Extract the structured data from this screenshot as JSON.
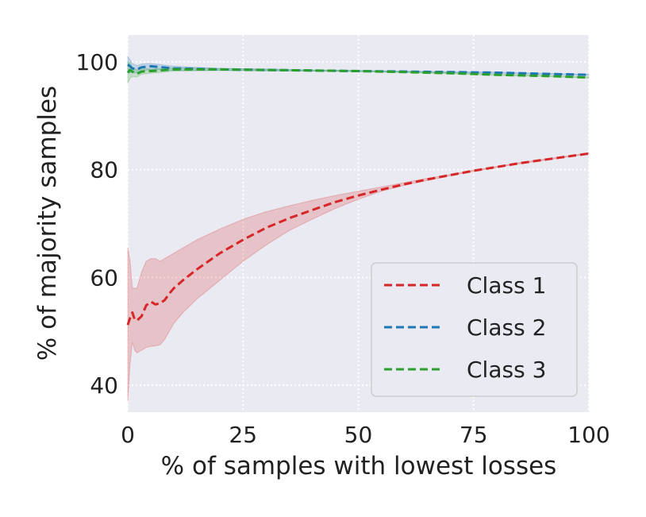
{
  "chart_data": {
    "type": "line",
    "title": "",
    "xlabel": "% of samples with lowest losses",
    "ylabel": "% of majority samples",
    "xlim": [
      0,
      100
    ],
    "ylim": [
      35,
      105
    ],
    "xticks": [
      0,
      25,
      50,
      75,
      100
    ],
    "yticks": [
      40,
      60,
      80,
      100
    ],
    "grid": true,
    "legend_position": "lower-right",
    "series": [
      {
        "name": "Class 1",
        "color": "#d62728",
        "style": "dashed",
        "x": [
          0,
          0.5,
          1,
          1.5,
          2,
          3,
          4,
          5,
          6,
          7,
          8,
          9,
          10,
          12,
          15,
          20,
          25,
          30,
          35,
          40,
          45,
          50,
          55,
          60,
          65,
          70,
          75,
          80,
          85,
          90,
          95,
          100
        ],
        "y": [
          51.2,
          52.5,
          53.5,
          52.2,
          52.0,
          52.8,
          54.8,
          55.5,
          55.0,
          55.2,
          55.8,
          57.0,
          58.0,
          59.5,
          61.5,
          64.5,
          67.0,
          69.2,
          71.0,
          72.5,
          74.0,
          75.2,
          76.3,
          77.3,
          78.2,
          79.0,
          79.8,
          80.5,
          81.2,
          81.8,
          82.4,
          83.0
        ],
        "lower": [
          37.0,
          44.0,
          48.0,
          46.5,
          46.0,
          46.5,
          47.0,
          47.2,
          47.3,
          47.5,
          48.5,
          50.0,
          51.5,
          53.5,
          56.0,
          59.5,
          63.0,
          66.0,
          68.7,
          70.8,
          72.8,
          74.5,
          76.0,
          77.1,
          78.0,
          78.9,
          79.7,
          80.4,
          81.1,
          81.7,
          82.3,
          82.9
        ],
        "upper": [
          65.5,
          63.0,
          58.0,
          58.0,
          58.0,
          61.0,
          63.0,
          63.5,
          63.5,
          63.0,
          63.5,
          64.0,
          64.5,
          65.5,
          67.0,
          69.0,
          70.8,
          72.2,
          73.3,
          74.3,
          75.2,
          76.0,
          76.8,
          77.6,
          78.4,
          79.1,
          79.9,
          80.6,
          81.3,
          81.9,
          82.5,
          83.1
        ]
      },
      {
        "name": "Class 2",
        "color": "#1f77b4",
        "style": "dashed",
        "x": [
          0,
          0.5,
          1,
          2,
          3,
          5,
          10,
          20,
          30,
          40,
          50,
          60,
          70,
          80,
          90,
          100
        ],
        "y": [
          99.5,
          99.2,
          98.8,
          98.6,
          99.0,
          99.2,
          98.8,
          98.6,
          98.5,
          98.4,
          98.3,
          98.2,
          98.1,
          98.0,
          97.8,
          97.6
        ],
        "lower": [
          98.0,
          98.0,
          98.0,
          98.0,
          98.3,
          98.6,
          98.4,
          98.4,
          98.3,
          98.3,
          98.2,
          98.1,
          98.0,
          97.9,
          97.7,
          97.5
        ],
        "upper": [
          101.0,
          100.4,
          99.7,
          99.3,
          99.6,
          99.7,
          99.2,
          98.8,
          98.7,
          98.5,
          98.4,
          98.3,
          98.2,
          98.1,
          97.9,
          97.7
        ]
      },
      {
        "name": "Class 3",
        "color": "#2ca02c",
        "style": "dashed",
        "x": [
          0,
          0.5,
          1,
          2,
          3,
          5,
          10,
          20,
          30,
          40,
          50,
          60,
          70,
          80,
          90,
          100
        ],
        "y": [
          98.0,
          98.5,
          98.2,
          97.8,
          98.2,
          98.3,
          98.6,
          98.6,
          98.5,
          98.4,
          98.3,
          98.1,
          97.9,
          97.6,
          97.4,
          97.1
        ],
        "lower": [
          96.0,
          97.0,
          97.3,
          97.2,
          97.7,
          97.9,
          98.3,
          98.4,
          98.4,
          98.3,
          98.2,
          98.0,
          97.8,
          97.5,
          97.3,
          97.0
        ],
        "upper": [
          100.0,
          99.8,
          99.0,
          98.5,
          98.7,
          98.7,
          98.9,
          98.8,
          98.6,
          98.5,
          98.4,
          98.2,
          98.0,
          97.7,
          97.5,
          97.2
        ]
      }
    ]
  }
}
